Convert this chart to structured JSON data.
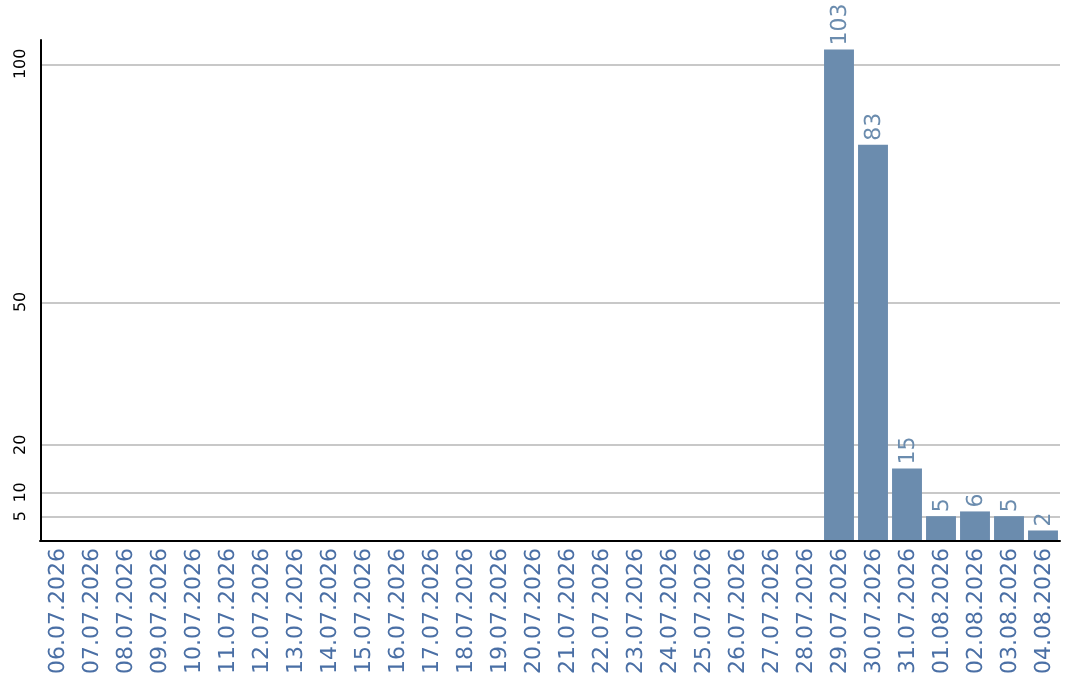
{
  "chart_data": {
    "type": "bar",
    "categories": [
      "06.07.2026",
      "07.07.2026",
      "08.07.2026",
      "09.07.2026",
      "10.07.2026",
      "11.07.2026",
      "12.07.2026",
      "13.07.2026",
      "14.07.2026",
      "15.07.2026",
      "16.07.2026",
      "17.07.2026",
      "18.07.2026",
      "19.07.2026",
      "20.07.2026",
      "21.07.2026",
      "22.07.2026",
      "23.07.2026",
      "24.07.2026",
      "25.07.2026",
      "26.07.2026",
      "27.07.2026",
      "28.07.2026",
      "29.07.2026",
      "30.07.2026",
      "31.07.2026",
      "01.08.2026",
      "02.08.2026",
      "03.08.2026",
      "04.08.2026"
    ],
    "values": [
      0,
      0,
      0,
      0,
      0,
      0,
      0,
      0,
      0,
      0,
      0,
      0,
      0,
      0,
      0,
      0,
      0,
      0,
      0,
      0,
      0,
      0,
      0,
      103,
      83,
      15,
      5,
      6,
      5,
      2
    ],
    "value_labels": [
      null,
      null,
      null,
      null,
      null,
      null,
      null,
      null,
      null,
      null,
      null,
      null,
      null,
      null,
      null,
      null,
      null,
      null,
      null,
      null,
      null,
      null,
      null,
      "103",
      "83",
      "15",
      "5",
      "6",
      "5",
      "2"
    ],
    "color": "#6b8cae",
    "ylim": [
      0,
      105
    ],
    "yticks": [
      5,
      10,
      20,
      50,
      100
    ],
    "grid": "y"
  }
}
